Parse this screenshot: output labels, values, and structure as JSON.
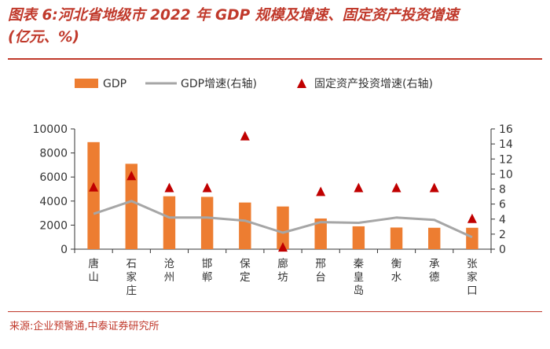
{
  "header": {
    "title_line1": "图表 6:河北省地级市 2022 年 GDP 规模及增速、固定资产投资增速",
    "title_line2": "(亿元、%)"
  },
  "footer": {
    "source": "来源:企业预警通,中泰证券研究所"
  },
  "colors": {
    "bar": "#ed7d31",
    "line": "#a6a6a6",
    "marker": "#c00000",
    "accent": "#c0392b"
  },
  "chart_data": {
    "type": "bar",
    "categories": [
      "唐山",
      "石家庄",
      "沧州",
      "邯郸",
      "保定",
      "廊坊",
      "邢台",
      "秦皇岛",
      "衡水",
      "承德",
      "张家口"
    ],
    "series": [
      {
        "name": "GDP",
        "kind": "bar",
        "axis": "left",
        "values": [
          8900,
          7100,
          4400,
          4350,
          3880,
          3550,
          2550,
          1900,
          1800,
          1780,
          1780
        ]
      },
      {
        "name": "GDP增速(右轴)",
        "kind": "line",
        "axis": "right",
        "values": [
          4.7,
          6.4,
          4.2,
          4.2,
          3.8,
          2.2,
          3.6,
          3.5,
          4.2,
          3.9,
          1.6
        ]
      },
      {
        "name": "固定资产投资增速(右轴)",
        "kind": "marker",
        "axis": "right",
        "values": [
          8.2,
          9.7,
          8.1,
          8.1,
          15.0,
          0.2,
          7.6,
          8.1,
          8.1,
          8.1,
          4.0
        ]
      }
    ],
    "y_left": {
      "min": 0,
      "max": 10000,
      "ticks": [
        "0",
        "2000",
        "4000",
        "6000",
        "8000",
        "10000"
      ]
    },
    "y_right": {
      "min": 0,
      "max": 16,
      "ticks": [
        "0",
        "2",
        "4",
        "6",
        "8",
        "10",
        "12",
        "14",
        "16"
      ]
    },
    "legend": [
      "GDP",
      "GDP增速(右轴)",
      "固定资产投资增速(右轴)"
    ],
    "legend_position": "top",
    "grid": false
  }
}
